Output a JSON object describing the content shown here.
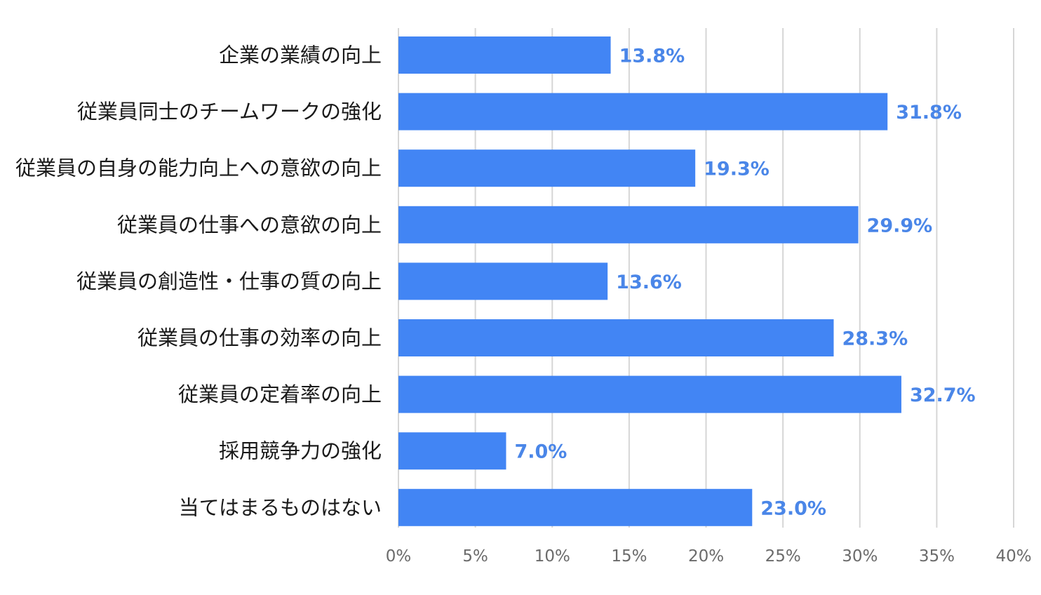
{
  "chart_data": {
    "type": "bar",
    "orientation": "horizontal",
    "title": "",
    "xlabel": "",
    "ylabel": "",
    "categories": [
      "企業の業績の向上",
      "従業員同士のチームワークの強化",
      "従業員の自身の能力向上への意欲の向上",
      "従業員の仕事への意欲の向上",
      "従業員の創造性・仕事の質の向上",
      "従業員の仕事の効率の向上",
      "従業員の定着率の向上",
      "採用競争力の強化",
      "当てはまるものはない"
    ],
    "values": [
      13.8,
      31.8,
      19.3,
      29.9,
      13.6,
      28.3,
      32.7,
      7.0,
      23.0
    ],
    "value_labels": [
      "13.8%",
      "31.8%",
      "19.3%",
      "29.9%",
      "13.6%",
      "28.3%",
      "32.7%",
      "7.0%",
      "23.0%"
    ],
    "xlim": [
      0,
      40
    ],
    "ticks": [
      0,
      5,
      10,
      15,
      20,
      25,
      30,
      35,
      40
    ],
    "tick_labels": [
      "0%",
      "5%",
      "10%",
      "15%",
      "20%",
      "25%",
      "30%",
      "35%",
      "40%"
    ],
    "grid": true,
    "legend": "none",
    "colors": {
      "bar": "#4285f4",
      "value_label": "#4a86e8",
      "grid": "#d6d6d6"
    }
  }
}
